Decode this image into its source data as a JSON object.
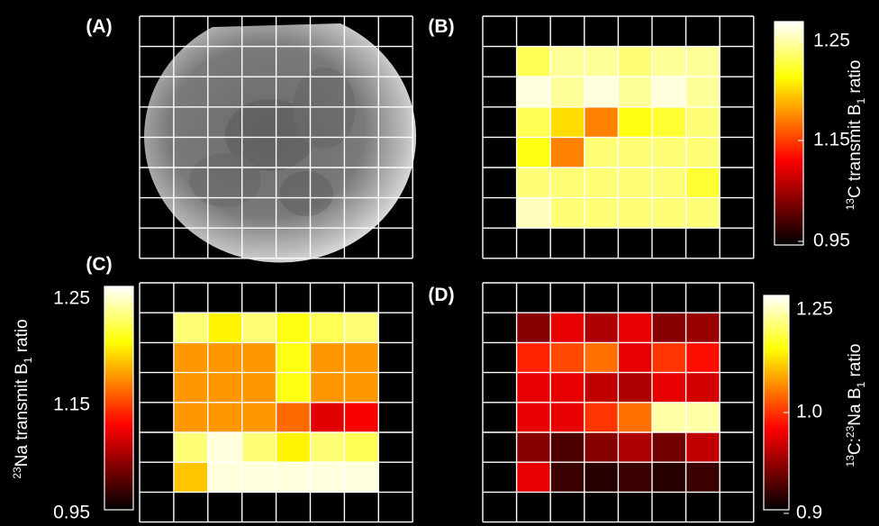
{
  "chart_data": [
    {
      "id": "A",
      "type": "image",
      "panel_label": "(A)",
      "description_visible": "grayscale circular phantom image with grid overlay"
    },
    {
      "id": "B",
      "type": "heatmap",
      "panel_label": "(B)",
      "colorbar_title_parts": {
        "sup": "13",
        "main": "C transmit B",
        "sub": "1",
        "end": " ratio"
      },
      "colorbar_ticks": [
        "1.25",
        "1.15",
        "0.95"
      ],
      "vmin": 0.95,
      "vmax": 1.25,
      "values": [
        [
          1.2,
          1.22,
          1.22,
          1.21,
          1.22,
          1.22
        ],
        [
          1.24,
          1.22,
          1.24,
          1.22,
          1.24,
          1.22
        ],
        [
          1.2,
          1.16,
          1.12,
          1.18,
          1.19,
          1.21
        ],
        [
          1.18,
          1.12,
          1.21,
          1.21,
          1.21,
          1.21
        ],
        [
          1.21,
          1.21,
          1.21,
          1.21,
          1.21,
          1.19
        ],
        [
          1.23,
          1.21,
          1.21,
          1.21,
          1.21,
          1.21
        ]
      ]
    },
    {
      "id": "C",
      "type": "heatmap",
      "panel_label": "(C)",
      "colorbar_title_parts": {
        "sup": "23",
        "main": "Na transmit B",
        "sub": "1",
        "end": " ratio"
      },
      "colorbar_ticks": [
        "1.25",
        "1.15",
        "0.95"
      ],
      "vmin": 0.95,
      "vmax": 1.25,
      "values": [
        [
          1.21,
          1.17,
          1.21,
          1.18,
          1.2,
          1.21
        ],
        [
          1.13,
          1.13,
          1.13,
          1.18,
          1.13,
          1.13
        ],
        [
          1.13,
          1.13,
          1.13,
          1.18,
          1.13,
          1.13
        ],
        [
          1.13,
          1.13,
          1.13,
          1.11,
          1.05,
          1.06
        ],
        [
          1.21,
          1.24,
          1.21,
          1.17,
          1.21,
          1.2
        ],
        [
          1.15,
          1.24,
          1.24,
          1.24,
          1.24,
          1.24
        ]
      ]
    },
    {
      "id": "D",
      "type": "heatmap",
      "panel_label": "(D)",
      "colorbar_title_parts": {
        "sup": "13",
        "main": "C:",
        "sup2": "23",
        "main2": "Na B",
        "sub": "1",
        "end": " ratio"
      },
      "colorbar_ticks": [
        "1.25",
        "1.0",
        "0.9"
      ],
      "vmin": 0.9,
      "vmax": 1.25,
      "values": [
        [
          0.97,
          1.02,
          0.99,
          1.02,
          0.97,
          0.98
        ],
        [
          1.05,
          1.07,
          1.09,
          1.02,
          1.06,
          1.04
        ],
        [
          1.02,
          1.02,
          1.0,
          0.99,
          1.02,
          1.01
        ],
        [
          1.02,
          1.02,
          1.06,
          1.09,
          1.22,
          1.22
        ],
        [
          0.97,
          0.94,
          0.97,
          0.99,
          0.96,
          1.0
        ],
        [
          1.02,
          0.93,
          0.92,
          0.93,
          0.92,
          0.93
        ]
      ]
    }
  ]
}
